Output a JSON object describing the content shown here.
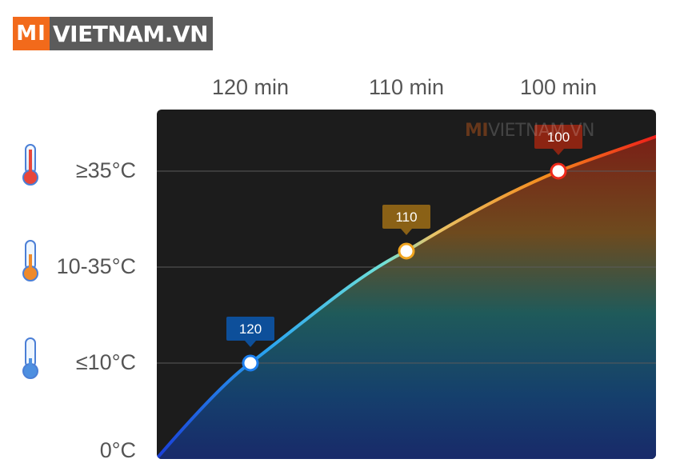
{
  "logo": {
    "mark": "MI",
    "text": "VIETNAM.VN"
  },
  "watermark": {
    "mark": "MI",
    "text": "VIETNAM.VN"
  },
  "icons": {
    "thermometer_high": "thermometer-hot-icon",
    "thermometer_mid": "thermometer-warm-icon",
    "thermometer_low": "thermometer-cold-icon"
  },
  "chart_data": {
    "type": "line",
    "x_axis_labels": [
      "120 min",
      "110 min",
      "100 min"
    ],
    "y_axis_labels": [
      "≥35°C",
      "10-35°C",
      "≤10°C",
      "0°C"
    ],
    "points": [
      {
        "level": "≤10°C",
        "value": "120",
        "color": "#0d4f9a"
      },
      {
        "level": "10-35°C",
        "value": "110",
        "color": "#8a6116"
      },
      {
        "level": "≥35°C",
        "value": "100",
        "color": "#8c2412"
      }
    ],
    "grid": true,
    "colors": {
      "panel": "#1c1c1c",
      "cold": "#1a55d6",
      "mid": "#4fd0e0",
      "warm": "#f3a21b",
      "hot": "#ec2518"
    }
  }
}
